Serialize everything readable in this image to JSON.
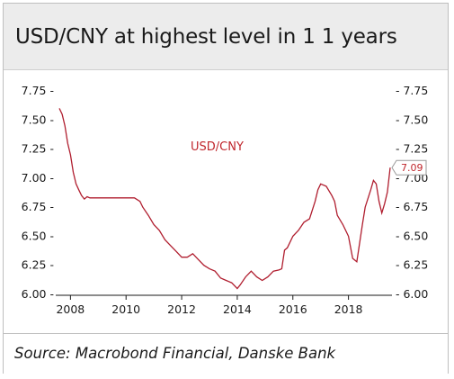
{
  "title": "USD/CNY at highest level in 1 1 years",
  "source": "Source: Macrobond Financial, Danske Bank",
  "colors": {
    "line": "#b01e2f",
    "label": "#c0272d",
    "axis": "#1a1a1a",
    "title_band": "#ececec"
  },
  "chart_data": {
    "type": "line",
    "x_ticks": [
      "2008",
      "2010",
      "2012",
      "2014",
      "2016",
      "2018"
    ],
    "y_ticks_left": [
      "7.75 -",
      "7.50 -",
      "7.25 -",
      "7.00 -",
      "6.75 -",
      "6.50 -",
      "6.25 -",
      "6.00 -"
    ],
    "y_ticks_right": [
      "- 7.75",
      "- 7.50",
      "- 7.25",
      "- 7.00",
      "- 6.75",
      "- 6.50",
      "- 6.25",
      "- 6.00"
    ],
    "y_tick_values": [
      7.75,
      7.5,
      7.25,
      7.0,
      6.75,
      6.5,
      6.25,
      6.0
    ],
    "ylim": [
      6.0,
      7.75
    ],
    "xlim": [
      2007.6,
      2019.5
    ],
    "grid": false,
    "series": [
      {
        "name": "USD/CNY",
        "x": [
          2007.6,
          2007.7,
          2007.8,
          2007.9,
          2008.0,
          2008.1,
          2008.2,
          2008.3,
          2008.4,
          2008.5,
          2008.6,
          2008.7,
          2008.8,
          2009.0,
          2009.3,
          2009.6,
          2010.0,
          2010.3,
          2010.5,
          2010.6,
          2010.8,
          2011.0,
          2011.2,
          2011.4,
          2011.6,
          2011.8,
          2012.0,
          2012.2,
          2012.4,
          2012.6,
          2012.8,
          2013.0,
          2013.2,
          2013.4,
          2013.6,
          2013.8,
          2014.0,
          2014.1,
          2014.3,
          2014.5,
          2014.7,
          2014.9,
          2015.1,
          2015.3,
          2015.5,
          2015.6,
          2015.7,
          2015.8,
          2016.0,
          2016.2,
          2016.4,
          2016.6,
          2016.8,
          2016.9,
          2017.0,
          2017.2,
          2017.4,
          2017.5,
          2017.6,
          2017.8,
          2018.0,
          2018.15,
          2018.3,
          2018.5,
          2018.6,
          2018.8,
          2018.9,
          2019.0,
          2019.1,
          2019.2,
          2019.3,
          2019.4,
          2019.5
        ],
        "values": [
          7.6,
          7.55,
          7.45,
          7.3,
          7.2,
          7.05,
          6.95,
          6.9,
          6.85,
          6.82,
          6.84,
          6.83,
          6.83,
          6.83,
          6.83,
          6.83,
          6.83,
          6.83,
          6.8,
          6.75,
          6.68,
          6.6,
          6.55,
          6.47,
          6.42,
          6.37,
          6.32,
          6.32,
          6.35,
          6.3,
          6.25,
          6.22,
          6.2,
          6.14,
          6.12,
          6.1,
          6.05,
          6.08,
          6.15,
          6.2,
          6.15,
          6.12,
          6.15,
          6.2,
          6.21,
          6.22,
          6.38,
          6.4,
          6.5,
          6.55,
          6.62,
          6.65,
          6.8,
          6.9,
          6.95,
          6.93,
          6.85,
          6.8,
          6.68,
          6.6,
          6.5,
          6.31,
          6.28,
          6.6,
          6.75,
          6.9,
          6.98,
          6.95,
          6.8,
          6.7,
          6.78,
          6.88,
          7.09
        ]
      }
    ],
    "series_label": "USD/CNY",
    "end_value_label": "7.09"
  }
}
